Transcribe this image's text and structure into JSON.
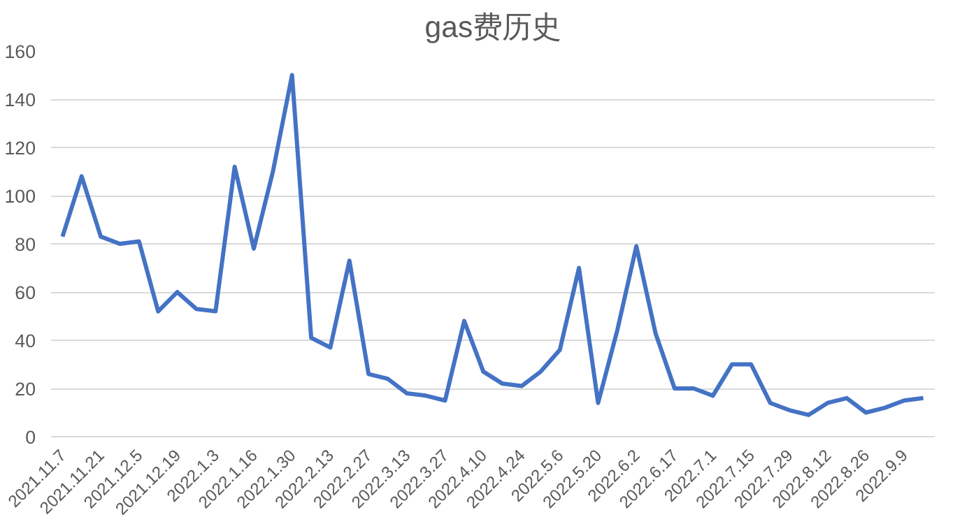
{
  "chart_data": {
    "type": "line",
    "title": "gas费历史",
    "categories": [
      "2021.11.7",
      null,
      "2021.11.21",
      null,
      "2021.12.5",
      null,
      "2021.12.19",
      null,
      "2022.1.3",
      null,
      "2022.1.16",
      null,
      "2022.1.30",
      null,
      "2022.2.13",
      null,
      "2022.2.27",
      null,
      "2022.3.13",
      null,
      "2022.3.27",
      null,
      "2022.4.10",
      null,
      "2022.4.24",
      null,
      "2022.5.6",
      null,
      "2022.5.20",
      null,
      "2022.6.2",
      null,
      "2022.6.17",
      null,
      "2022.7.1",
      null,
      "2022.7.15",
      null,
      "2022.7.29",
      null,
      "2022.8.12",
      null,
      "2022.8.26",
      null,
      "2022.9.9",
      null
    ],
    "series": [
      {
        "color": "#4472c4",
        "values": [
          83,
          108,
          83,
          80,
          81,
          52,
          60,
          53,
          52,
          112,
          78,
          110,
          150,
          41,
          37,
          73,
          26,
          24,
          18,
          17,
          15,
          48,
          27,
          22,
          21,
          27,
          36,
          70,
          14,
          44,
          79,
          43,
          20,
          20,
          17,
          30,
          30,
          14,
          11,
          9,
          14,
          16,
          10,
          12,
          15,
          16
        ]
      }
    ],
    "ylim": [
      0,
      160
    ],
    "yticks": [
      0,
      20,
      40,
      60,
      80,
      100,
      120,
      140,
      160
    ],
    "grid": "y",
    "marker": "none",
    "line_style": "solid"
  }
}
